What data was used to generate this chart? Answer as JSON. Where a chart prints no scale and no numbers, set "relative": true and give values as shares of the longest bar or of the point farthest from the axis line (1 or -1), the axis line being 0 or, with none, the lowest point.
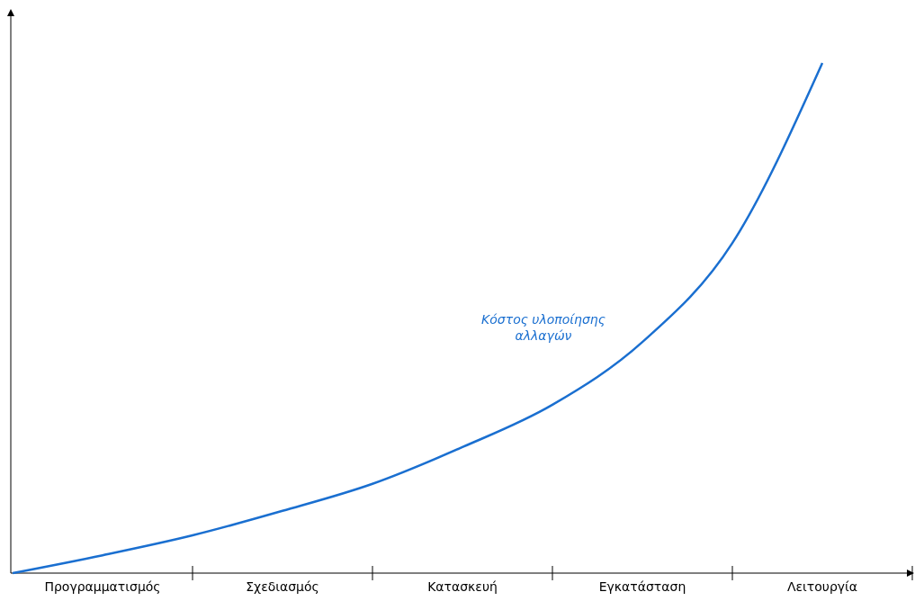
{
  "chart_data": {
    "type": "line",
    "relative": true,
    "marker": "none",
    "line_style": "solid",
    "grid": false,
    "categories": [
      null,
      "Προγραμματισμός",
      null,
      "Σχεδιασμός",
      null,
      "Κατασκευή",
      null,
      "Εγκατάσταση",
      null,
      "Λειτουργία",
      null
    ],
    "series": [
      {
        "name": "Κόστος υλοποίησης αλλαγών",
        "color": "#1a6fd0",
        "values": [
          0,
          0.035,
          0.074,
          0.122,
          0.175,
          0.247,
          0.33,
          0.453,
          0.647,
          1,
          null
        ]
      }
    ]
  }
}
